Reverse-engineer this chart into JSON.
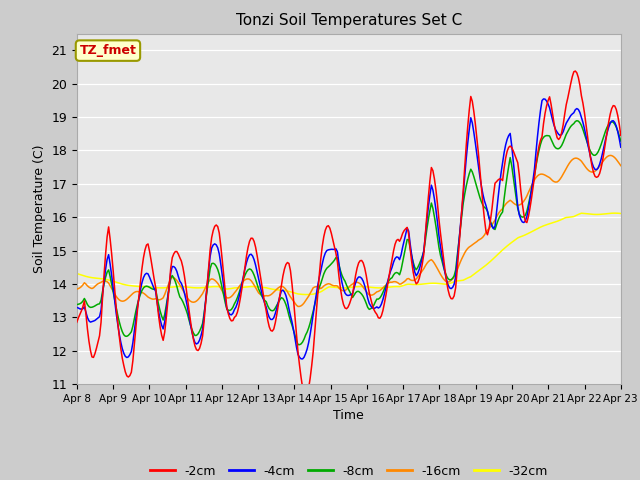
{
  "title": "Tonzi Soil Temperatures Set C",
  "xlabel": "Time",
  "ylabel": "Soil Temperature (C)",
  "ylim": [
    11.0,
    21.5
  ],
  "yticks": [
    11.0,
    12.0,
    13.0,
    14.0,
    15.0,
    16.0,
    17.0,
    18.0,
    19.0,
    20.0,
    21.0
  ],
  "line_colors": {
    "-2cm": "#ff0000",
    "-4cm": "#0000ff",
    "-8cm": "#00aa00",
    "-16cm": "#ff8800",
    "-32cm": "#ffff00"
  },
  "legend_label": "TZ_fmet",
  "legend_box_fill": "#ffffcc",
  "legend_box_edge": "#999900",
  "x_tick_labels": [
    "Apr 8",
    "Apr 9",
    "Apr 10",
    "Apr 11",
    "Apr 12",
    "Apr 13",
    "Apr 14",
    "Apr 15",
    "Apr 16",
    "Apr 17",
    "Apr 18",
    "Apr 19",
    "Apr 20",
    "Apr 21",
    "Apr 22",
    "Apr 23"
  ],
  "series_2cm": [
    12.2,
    14.5,
    12.8,
    12.0,
    14.5,
    13.3,
    12.8,
    11.9,
    12.8,
    14.3,
    14.6,
    13.5,
    14.5,
    13.5,
    13.3,
    13.3,
    13.3,
    14.4,
    14.5,
    13.7,
    14.3,
    14.1,
    14.1,
    14.0,
    14.2,
    13.7,
    13.5,
    13.3,
    12.1,
    11.8,
    12.5,
    13.8,
    14.8,
    15.5,
    14.5,
    13.5,
    13.4,
    13.5,
    14.3,
    14.2,
    13.9,
    14.1,
    16.1,
    15.3,
    15.0,
    16.3,
    15.1,
    14.9,
    14.8,
    16.2,
    18.4,
    17.8,
    16.7,
    17.5,
    16.0,
    17.2,
    18.3,
    17.0,
    16.9,
    17.1,
    19.3,
    19.5,
    20.1,
    19.5,
    18.5,
    18.4,
    18.5,
    18.3,
    18.1,
    17.8
  ],
  "series_4cm": [
    13.0,
    14.1,
    13.5,
    12.5,
    14.1,
    13.3,
    12.8,
    12.2,
    12.9,
    13.8,
    14.4,
    13.4,
    14.2,
    13.2,
    13.3,
    13.1,
    13.1,
    14.3,
    14.3,
    13.7,
    14.1,
    14.0,
    14.0,
    13.9,
    14.1,
    13.6,
    13.3,
    12.3,
    12.1,
    12.8,
    13.3,
    13.6,
    14.5,
    15.7,
    14.5,
    13.4,
    13.3,
    13.4,
    14.2,
    14.1,
    13.8,
    14.0,
    16.2,
    15.1,
    14.9,
    16.1,
    15.0,
    14.8,
    14.7,
    16.1,
    18.2,
    17.6,
    17.2,
    15.8,
    16.8,
    18.0,
    16.8,
    16.7,
    17.0,
    18.6,
    19.2,
    19.4,
    19.2,
    18.4,
    18.3,
    18.4,
    18.3,
    18.2,
    18.0,
    17.8
  ],
  "series_8cm": [
    13.3,
    14.1,
    13.6,
    13.0,
    14.0,
    13.5,
    13.0,
    12.6,
    13.1,
    13.7,
    14.3,
    13.3,
    14.0,
    13.1,
    13.2,
    13.0,
    13.0,
    14.1,
    14.0,
    13.6,
    13.9,
    13.9,
    13.9,
    13.8,
    14.0,
    13.5,
    13.2,
    12.5,
    12.4,
    13.0,
    13.2,
    13.5,
    14.3,
    15.3,
    14.5,
    13.3,
    13.2,
    13.3,
    14.1,
    14.0,
    13.7,
    13.9,
    15.8,
    14.9,
    14.8,
    15.9,
    14.9,
    14.7,
    14.6,
    16.0,
    17.0,
    16.9,
    16.8,
    15.6,
    15.6,
    17.6,
    16.6,
    16.5,
    16.9,
    17.8,
    18.5,
    18.6,
    18.6,
    18.3,
    18.4,
    18.4,
    18.4,
    18.4,
    18.3,
    18.2
  ],
  "series_16cm": [
    13.9,
    14.3,
    13.9,
    13.8,
    13.9,
    13.8,
    13.7,
    13.6,
    13.5,
    13.6,
    13.8,
    13.7,
    14.0,
    13.8,
    13.7,
    13.7,
    13.7,
    13.9,
    13.9,
    13.8,
    13.9,
    13.9,
    13.9,
    13.8,
    13.9,
    13.8,
    13.7,
    13.5,
    13.5,
    13.7,
    13.8,
    13.6,
    14.0,
    14.2,
    13.9,
    13.8,
    13.8,
    13.8,
    14.0,
    13.9,
    13.8,
    13.9,
    14.4,
    14.3,
    14.3,
    14.5,
    14.4,
    14.3,
    14.3,
    14.6,
    15.0,
    15.5,
    15.8,
    15.8,
    16.0,
    16.5,
    16.6,
    16.7,
    16.9,
    17.1,
    17.3,
    17.3,
    17.4,
    17.5,
    17.6,
    17.6,
    17.6,
    17.6,
    17.6,
    17.6
  ],
  "series_32cm": [
    14.3,
    14.25,
    14.2,
    14.15,
    14.1,
    14.05,
    14.0,
    13.95,
    13.9,
    13.9,
    13.9,
    13.9,
    13.9,
    13.9,
    13.9,
    13.9,
    13.9,
    13.9,
    13.9,
    13.85,
    13.9,
    13.9,
    13.9,
    13.9,
    13.9,
    13.85,
    13.8,
    13.75,
    13.7,
    13.7,
    13.7,
    13.75,
    13.9,
    13.9,
    13.9,
    13.9,
    13.9,
    13.9,
    13.9,
    13.9,
    13.9,
    13.9,
    14.0,
    14.0,
    14.0,
    14.0,
    14.0,
    14.0,
    14.1,
    14.1,
    14.2,
    14.4,
    14.6,
    14.8,
    15.0,
    15.2,
    15.4,
    15.5,
    15.6,
    15.7,
    15.8,
    15.9,
    16.0,
    16.0,
    16.1,
    16.1,
    16.1,
    16.1,
    16.1,
    16.1
  ]
}
